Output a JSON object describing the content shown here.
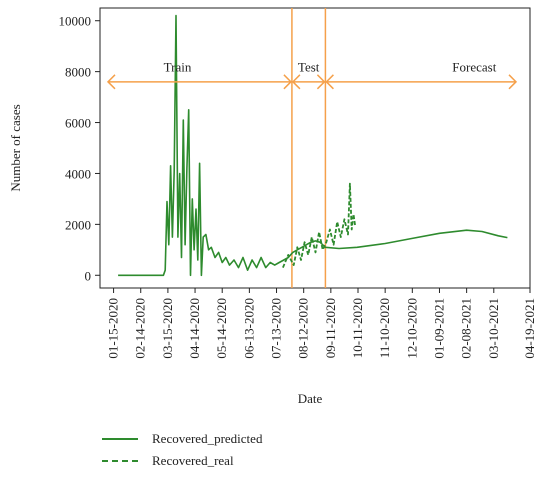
{
  "chart_data": {
    "type": "line",
    "ylabel": "Number of cases",
    "xlabel": "Date",
    "ylim": [
      -500,
      10500
    ],
    "y_ticks": [
      0,
      2000,
      4000,
      6000,
      8000,
      10000
    ],
    "x_ticks": [
      "01-15-2020",
      "02-14-2020",
      "03-15-2020",
      "04-14-2020",
      "05-14-2020",
      "06-13-2020",
      "07-13-2020",
      "08-12-2020",
      "09-11-2020",
      "10-11-2020",
      "11-10-2020",
      "12-10-2020",
      "01-09-2021",
      "02-08-2021",
      "03-10-2021",
      "04-19-2021"
    ],
    "grid": false,
    "legend_position": "bottom-left",
    "regions": [
      {
        "label": "Train",
        "from": "01-15-2020",
        "to": "07-30-2020"
      },
      {
        "label": "Test",
        "from": "07-30-2020",
        "to": "09-05-2020"
      },
      {
        "label": "Forecast",
        "from": "09-05-2020",
        "to": "03-25-2021"
      }
    ],
    "split_lines": [
      "07-30-2020",
      "09-05-2020"
    ],
    "series": [
      {
        "name": "Recovered_predicted",
        "style": "solid",
        "points": [
          [
            "01-20-2020",
            0
          ],
          [
            "03-10-2020",
            0
          ],
          [
            "03-12-2020",
            200
          ],
          [
            "03-14-2020",
            2900
          ],
          [
            "03-16-2020",
            1200
          ],
          [
            "03-18-2020",
            4300
          ],
          [
            "03-20-2020",
            1500
          ],
          [
            "03-22-2020",
            4100
          ],
          [
            "03-24-2020",
            10200
          ],
          [
            "03-26-2020",
            1500
          ],
          [
            "03-28-2020",
            4000
          ],
          [
            "03-30-2020",
            700
          ],
          [
            "04-01-2020",
            6100
          ],
          [
            "04-03-2020",
            1200
          ],
          [
            "04-05-2020",
            4200
          ],
          [
            "04-07-2020",
            6500
          ],
          [
            "04-09-2020",
            0
          ],
          [
            "04-11-2020",
            3000
          ],
          [
            "04-13-2020",
            1000
          ],
          [
            "04-15-2020",
            2600
          ],
          [
            "04-17-2020",
            600
          ],
          [
            "04-19-2020",
            4400
          ],
          [
            "04-21-2020",
            0
          ],
          [
            "04-23-2020",
            1500
          ],
          [
            "04-26-2020",
            1600
          ],
          [
            "04-29-2020",
            1000
          ],
          [
            "05-02-2020",
            1100
          ],
          [
            "05-06-2020",
            700
          ],
          [
            "05-10-2020",
            900
          ],
          [
            "05-14-2020",
            500
          ],
          [
            "05-18-2020",
            700
          ],
          [
            "05-22-2020",
            400
          ],
          [
            "05-27-2020",
            600
          ],
          [
            "06-01-2020",
            300
          ],
          [
            "06-06-2020",
            700
          ],
          [
            "06-11-2020",
            200
          ],
          [
            "06-16-2020",
            600
          ],
          [
            "06-21-2020",
            300
          ],
          [
            "06-26-2020",
            700
          ],
          [
            "07-01-2020",
            300
          ],
          [
            "07-06-2020",
            500
          ],
          [
            "07-11-2020",
            400
          ],
          [
            "07-16-2020",
            500
          ],
          [
            "07-21-2020",
            600
          ],
          [
            "07-26-2020",
            700
          ],
          [
            "07-31-2020",
            900
          ],
          [
            "08-05-2020",
            1000
          ],
          [
            "08-10-2020",
            1100
          ],
          [
            "08-15-2020",
            1200
          ],
          [
            "08-20-2020",
            1300
          ],
          [
            "08-25-2020",
            1350
          ],
          [
            "08-30-2020",
            1300
          ],
          [
            "09-05-2020",
            1100
          ],
          [
            "09-20-2020",
            1050
          ],
          [
            "10-10-2020",
            1100
          ],
          [
            "11-10-2020",
            1250
          ],
          [
            "12-10-2020",
            1450
          ],
          [
            "01-09-2021",
            1650
          ],
          [
            "02-08-2021",
            1770
          ],
          [
            "02-25-2021",
            1720
          ],
          [
            "03-15-2021",
            1550
          ],
          [
            "03-25-2021",
            1480
          ]
        ]
      },
      {
        "name": "Recovered_real",
        "style": "dashed",
        "points": [
          [
            "07-20-2020",
            300
          ],
          [
            "07-26-2020",
            800
          ],
          [
            "08-01-2020",
            400
          ],
          [
            "08-05-2020",
            1100
          ],
          [
            "08-09-2020",
            600
          ],
          [
            "08-13-2020",
            1300
          ],
          [
            "08-17-2020",
            800
          ],
          [
            "08-21-2020",
            1500
          ],
          [
            "08-25-2020",
            900
          ],
          [
            "08-29-2020",
            1700
          ],
          [
            "09-02-2020",
            1000
          ],
          [
            "09-06-2020",
            1300
          ],
          [
            "09-10-2020",
            1800
          ],
          [
            "09-14-2020",
            1200
          ],
          [
            "09-18-2020",
            2100
          ],
          [
            "09-22-2020",
            1500
          ],
          [
            "09-26-2020",
            2200
          ],
          [
            "09-30-2020",
            1600
          ],
          [
            "10-02-2020",
            3600
          ],
          [
            "10-04-2020",
            1800
          ],
          [
            "10-06-2020",
            2400
          ],
          [
            "10-08-2020",
            1900
          ]
        ]
      }
    ]
  }
}
